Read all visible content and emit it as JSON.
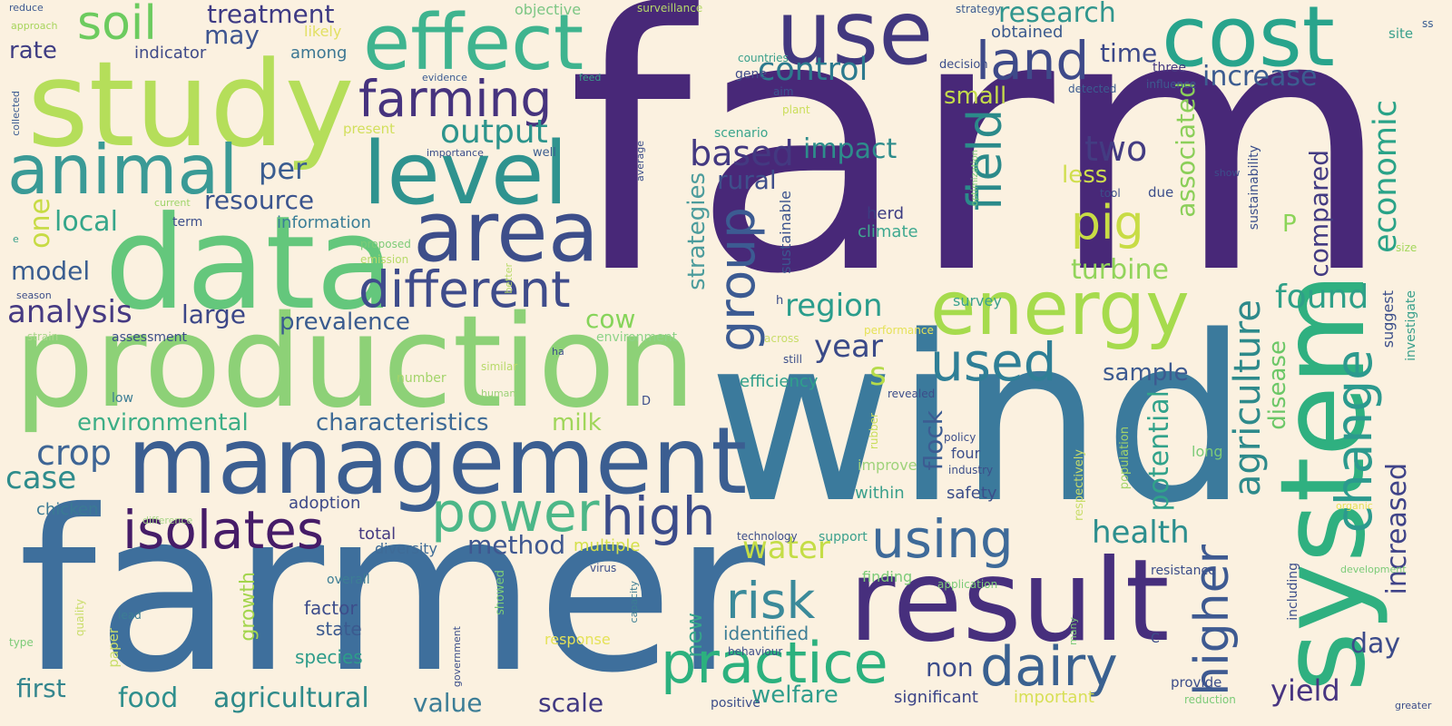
{
  "words": [
    {
      "text": "farm",
      "color": "#482878"
    },
    {
      "text": "farmer",
      "color": "#3E6F9C"
    },
    {
      "text": "wind",
      "color": "#3B7A9C"
    },
    {
      "text": "production",
      "color": "#8DD177"
    },
    {
      "text": "study",
      "color": "#B5DE5A"
    },
    {
      "text": "data",
      "color": "#64C77C"
    },
    {
      "text": "management",
      "color": "#3B5E91"
    },
    {
      "text": "result",
      "color": "#472F7D"
    },
    {
      "text": "system",
      "color": "#2FB080"
    },
    {
      "text": "effect",
      "color": "#3FB48F"
    },
    {
      "text": "use",
      "color": "#42387F"
    },
    {
      "text": "cost",
      "color": "#28A48C"
    },
    {
      "text": "animal",
      "color": "#3A9A96"
    },
    {
      "text": "level",
      "color": "#2F938F"
    },
    {
      "text": "area",
      "color": "#3D4E8A"
    },
    {
      "text": "energy",
      "color": "#A6DB4D"
    },
    {
      "text": "land",
      "color": "#3E4A89"
    },
    {
      "text": "farming",
      "color": "#46337E"
    },
    {
      "text": "different",
      "color": "#3F4C8B"
    },
    {
      "text": "soil",
      "color": "#6CCB5F"
    },
    {
      "text": "isolates",
      "color": "#461C68"
    },
    {
      "text": "practice",
      "color": "#2CB17E"
    },
    {
      "text": "risk",
      "color": "#3B8A9A"
    },
    {
      "text": "power",
      "color": "#4CB788"
    },
    {
      "text": "high",
      "color": "#3C4C8A"
    },
    {
      "text": "using",
      "color": "#3E6A99"
    },
    {
      "text": "dairy",
      "color": "#3A6190"
    },
    {
      "text": "used",
      "color": "#2F7F96"
    },
    {
      "text": "group",
      "color": "#3C5B92"
    },
    {
      "text": "field",
      "color": "#2B8A8A"
    },
    {
      "text": "pig",
      "color": "#C8DC45"
    },
    {
      "text": "change",
      "color": "#2C9A8E"
    },
    {
      "text": "higher",
      "color": "#3E5A91"
    },
    {
      "text": "agriculture",
      "color": "#2E8A8B"
    },
    {
      "text": "treatment",
      "color": "#3E3A84"
    },
    {
      "text": "research",
      "color": "#31968E"
    },
    {
      "text": "control",
      "color": "#2C7A8E"
    },
    {
      "text": "output",
      "color": "#2C948C"
    },
    {
      "text": "two",
      "color": "#433C82"
    },
    {
      "text": "increase",
      "color": "#3C5C90"
    },
    {
      "text": "economic",
      "color": "#2AA388"
    },
    {
      "text": "compared",
      "color": "#433B82"
    },
    {
      "text": "time",
      "color": "#3C4889"
    },
    {
      "text": "rate",
      "color": "#3F3D83"
    },
    {
      "text": "may",
      "color": "#3E5590"
    },
    {
      "text": "indicator",
      "color": "#3F4B89"
    },
    {
      "text": "among",
      "color": "#3C7793"
    },
    {
      "text": "obtained",
      "color": "#3B5A8E"
    },
    {
      "text": "small",
      "color": "#C4DB4A"
    },
    {
      "text": "based",
      "color": "#433981"
    },
    {
      "text": "impact",
      "color": "#2D8C8B"
    },
    {
      "text": "rural",
      "color": "#3E4E8B"
    },
    {
      "text": "per",
      "color": "#3A5D90"
    },
    {
      "text": "resource",
      "color": "#3B548E"
    },
    {
      "text": "one",
      "color": "#C7DB44"
    },
    {
      "text": "local",
      "color": "#35A68A"
    },
    {
      "text": "information",
      "color": "#3A7E97"
    },
    {
      "text": "model",
      "color": "#3A5D90"
    },
    {
      "text": "analysis",
      "color": "#463A82"
    },
    {
      "text": "large",
      "color": "#3C4788"
    },
    {
      "text": "prevalence",
      "color": "#3A5B8F"
    },
    {
      "text": "region",
      "color": "#2A9D8C"
    },
    {
      "text": "year",
      "color": "#3A4A88"
    },
    {
      "text": "cow",
      "color": "#86D45A"
    },
    {
      "text": "strategies",
      "color": "#4C9C9C"
    },
    {
      "text": "turbine",
      "color": "#92D45B"
    },
    {
      "text": "less",
      "color": "#D0DE4D"
    },
    {
      "text": "associated",
      "color": "#8BCF59"
    },
    {
      "text": "found",
      "color": "#2FA088"
    },
    {
      "text": "sample",
      "color": "#3D5A90"
    },
    {
      "text": "potential",
      "color": "#31A28A"
    },
    {
      "text": "disease",
      "color": "#6CC767"
    },
    {
      "text": "environmental",
      "color": "#3DAE86"
    },
    {
      "text": "characteristics",
      "color": "#3D6A96"
    },
    {
      "text": "milk",
      "color": "#A0D65A"
    },
    {
      "text": "crop",
      "color": "#3E6595"
    },
    {
      "text": "case",
      "color": "#2E8C8C"
    },
    {
      "text": "chicken",
      "color": "#3A7A94"
    },
    {
      "text": "method",
      "color": "#3F5790"
    },
    {
      "text": "water",
      "color": "#C4DD46"
    },
    {
      "text": "health",
      "color": "#2D8F8E"
    },
    {
      "text": "increased",
      "color": "#3F4388"
    },
    {
      "text": "total",
      "color": "#453A82"
    },
    {
      "text": "diversity",
      "color": "#3E6B97"
    },
    {
      "text": "multiple",
      "color": "#D4E04A"
    },
    {
      "text": "adoption",
      "color": "#3B4888"
    },
    {
      "text": "growth",
      "color": "#A3D54C"
    },
    {
      "text": "factor",
      "color": "#3D4D8B"
    },
    {
      "text": "state",
      "color": "#3B5A8F"
    },
    {
      "text": "species",
      "color": "#2D9C8A"
    },
    {
      "text": "new",
      "color": "#35A58A"
    },
    {
      "text": "identified",
      "color": "#3E7E96"
    },
    {
      "text": "non",
      "color": "#3C4D8B"
    },
    {
      "text": "food",
      "color": "#2F8F8D"
    },
    {
      "text": "agricultural",
      "color": "#2E8A8A"
    },
    {
      "text": "value",
      "color": "#3C7D96"
    },
    {
      "text": "scale",
      "color": "#413982"
    },
    {
      "text": "welfare",
      "color": "#2F9D8C"
    },
    {
      "text": "first",
      "color": "#35868E"
    },
    {
      "text": "significant",
      "color": "#3C4588"
    },
    {
      "text": "important",
      "color": "#D7DF55"
    },
    {
      "text": "yield",
      "color": "#483581"
    },
    {
      "text": "day",
      "color": "#3C4B8A"
    },
    {
      "text": "flock",
      "color": "#3C5C92"
    },
    {
      "text": "s",
      "color": "#B5DB4A"
    },
    {
      "text": "P",
      "color": "#8BD458"
    },
    {
      "text": "herd",
      "color": "#3C3C82"
    },
    {
      "text": "climate",
      "color": "#3FA990"
    },
    {
      "text": "survey",
      "color": "#3AA18C"
    },
    {
      "text": "efficiency",
      "color": "#2FA08B"
    },
    {
      "text": "sustainable",
      "color": "#3C548E"
    },
    {
      "text": "sustainability",
      "color": "#3C508C"
    },
    {
      "text": "suggest",
      "color": "#3C4E8A"
    },
    {
      "text": "investigate",
      "color": "#3AA08C"
    },
    {
      "text": "site",
      "color": "#3AA08C"
    },
    {
      "text": "size",
      "color": "#A3D75A"
    },
    {
      "text": "ss",
      "color": "#3B5E92"
    },
    {
      "text": "strategy",
      "color": "#3C5C90"
    },
    {
      "text": "three",
      "color": "#463A82"
    },
    {
      "text": "influence",
      "color": "#3E5A90"
    },
    {
      "text": "detected",
      "color": "#3B5C90"
    },
    {
      "text": "decision",
      "color": "#3C4E8A"
    },
    {
      "text": "countries",
      "color": "#3AA08C"
    },
    {
      "text": "gene",
      "color": "#3F4C8A"
    },
    {
      "text": "aim",
      "color": "#3B548E"
    },
    {
      "text": "plant",
      "color": "#CBDE5A"
    },
    {
      "text": "scenario",
      "color": "#3AA58C"
    },
    {
      "text": "surveillance",
      "color": "#B6D96A"
    },
    {
      "text": "objective",
      "color": "#7CC684"
    },
    {
      "text": "likely",
      "color": "#E2E063"
    },
    {
      "text": "reduce",
      "color": "#3E5A90"
    },
    {
      "text": "approach",
      "color": "#A7D45C"
    },
    {
      "text": "collected",
      "color": "#3C5C92"
    },
    {
      "text": "evidence",
      "color": "#3C5C92"
    },
    {
      "text": "feed",
      "color": "#3AA08C"
    },
    {
      "text": "present",
      "color": "#D2DF5C"
    },
    {
      "text": "importance",
      "color": "#3C4E8A"
    },
    {
      "text": "well",
      "color": "#3B5D8F"
    },
    {
      "text": "current",
      "color": "#9ED46A"
    },
    {
      "text": "term",
      "color": "#3C4E8A"
    },
    {
      "text": "e",
      "color": "#3AA08C"
    },
    {
      "text": "proposed",
      "color": "#7CCB78"
    },
    {
      "text": "emission",
      "color": "#B8DA6A"
    },
    {
      "text": "better",
      "color": "#B8DA6A"
    },
    {
      "text": "season",
      "color": "#3C4E8A"
    },
    {
      "text": "strain",
      "color": "#A9D68A"
    },
    {
      "text": "assessment",
      "color": "#3C4E8A"
    },
    {
      "text": "environment",
      "color": "#8ED388"
    },
    {
      "text": "across",
      "color": "#C9DD6A"
    },
    {
      "text": "performance",
      "color": "#E5E257"
    },
    {
      "text": "ha",
      "color": "#3C4E8A"
    },
    {
      "text": "still",
      "color": "#3C4E8A"
    },
    {
      "text": "h",
      "color": "#3C4E8A"
    },
    {
      "text": "similar",
      "color": "#B8DA6A"
    },
    {
      "text": "human",
      "color": "#9ED27A"
    },
    {
      "text": "number",
      "color": "#A3D46A"
    },
    {
      "text": "low",
      "color": "#3C7D94"
    },
    {
      "text": "D",
      "color": "#3C4E8A"
    },
    {
      "text": "revealed",
      "color": "#3C4E8A"
    },
    {
      "text": "rubber",
      "color": "#C9DD5A"
    },
    {
      "text": "policy",
      "color": "#3C4E8A"
    },
    {
      "text": "four",
      "color": "#3C4E8A"
    },
    {
      "text": "industry",
      "color": "#3C4E8A"
    },
    {
      "text": "improve",
      "color": "#9ED27A"
    },
    {
      "text": "within",
      "color": "#3AA08C"
    },
    {
      "text": "safety",
      "color": "#3C4E8A"
    },
    {
      "text": "respectively",
      "color": "#C9DD6A"
    },
    {
      "text": "population",
      "color": "#A3D46A"
    },
    {
      "text": "long",
      "color": "#7CCB78"
    },
    {
      "text": "organic",
      "color": "#E5E257"
    },
    {
      "text": "difference",
      "color": "#A9D68A"
    },
    {
      "text": "technology",
      "color": "#3C4E8A"
    },
    {
      "text": "support",
      "color": "#3AA08C"
    },
    {
      "text": "virus",
      "color": "#3C4E8A"
    },
    {
      "text": "capacity",
      "color": "#3C7D94"
    },
    {
      "text": "finding",
      "color": "#7CCB78"
    },
    {
      "text": "application",
      "color": "#7CCB78"
    },
    {
      "text": "resistance",
      "color": "#3C4E8A"
    },
    {
      "text": "development",
      "color": "#7CCB78"
    },
    {
      "text": "including",
      "color": "#3C4E8A"
    },
    {
      "text": "many",
      "color": "#7CCB78"
    },
    {
      "text": "C",
      "color": "#3C4E8A"
    },
    {
      "text": "overall",
      "color": "#3C7D94"
    },
    {
      "text": "lead",
      "color": "#3C7D94"
    },
    {
      "text": "quality",
      "color": "#C9DD6A"
    },
    {
      "text": "paper",
      "color": "#C9DD6A"
    },
    {
      "text": "type",
      "color": "#7CCB78"
    },
    {
      "text": "government",
      "color": "#3C4E8A"
    },
    {
      "text": "showed",
      "color": "#7CCB78"
    },
    {
      "text": "response",
      "color": "#E5E257"
    },
    {
      "text": "behaviour",
      "color": "#3C4E8A"
    },
    {
      "text": "positive",
      "color": "#3C4E8A"
    },
    {
      "text": "provide",
      "color": "#3C4E8A"
    },
    {
      "text": "reduction",
      "color": "#7CCB78"
    },
    {
      "text": "greater",
      "color": "#3C4E8A"
    },
    {
      "text": "average",
      "color": "#3C4E8A"
    },
    {
      "text": "optimization",
      "color": "#7CCB78"
    },
    {
      "text": "tool",
      "color": "#3C4E8A"
    },
    {
      "text": "due",
      "color": "#3C4E8A"
    },
    {
      "text": "show",
      "color": "#3C4E8A"
    }
  ]
}
